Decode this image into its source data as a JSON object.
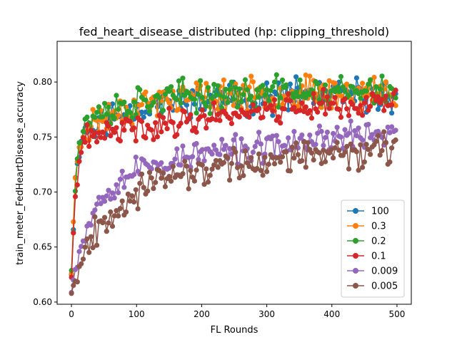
{
  "chart_data": {
    "type": "line",
    "title": "fed_heart_disease_distributed (hp: clipping_threshold)",
    "xlabel": "FL Rounds",
    "ylabel": "train_meter_FedHeartDisease_accuracy",
    "xlim": [
      -22,
      522
    ],
    "ylim": [
      0.598,
      0.837
    ],
    "xticks": [
      0,
      100,
      200,
      300,
      400,
      500
    ],
    "yticks": [
      0.6,
      0.65,
      0.7,
      0.75,
      0.8
    ],
    "ytick_labels": [
      "0.60",
      "0.65",
      "0.70",
      "0.75",
      "0.80"
    ],
    "legend_position": "lower-right",
    "grid": false,
    "x": {
      "start": 0,
      "end": 500,
      "step": 3
    },
    "series": [
      {
        "name": "100",
        "color": "#1f77b4",
        "anchors": [
          [
            0,
            0.63
          ],
          [
            5,
            0.7
          ],
          [
            10,
            0.735
          ],
          [
            20,
            0.755
          ],
          [
            40,
            0.762
          ],
          [
            80,
            0.772
          ],
          [
            150,
            0.782
          ],
          [
            250,
            0.785
          ],
          [
            350,
            0.788
          ],
          [
            500,
            0.788
          ]
        ],
        "noise": 0.018,
        "seed": 11
      },
      {
        "name": "0.3",
        "color": "#ff7f0e",
        "anchors": [
          [
            0,
            0.63
          ],
          [
            5,
            0.7
          ],
          [
            10,
            0.735
          ],
          [
            20,
            0.757
          ],
          [
            40,
            0.765
          ],
          [
            80,
            0.775
          ],
          [
            150,
            0.785
          ],
          [
            250,
            0.788
          ],
          [
            350,
            0.79
          ],
          [
            500,
            0.79
          ]
        ],
        "noise": 0.018,
        "seed": 23
      },
      {
        "name": "0.2",
        "color": "#2ca02c",
        "anchors": [
          [
            0,
            0.63
          ],
          [
            5,
            0.7
          ],
          [
            10,
            0.74
          ],
          [
            20,
            0.762
          ],
          [
            40,
            0.77
          ],
          [
            80,
            0.778
          ],
          [
            150,
            0.786
          ],
          [
            250,
            0.789
          ],
          [
            350,
            0.791
          ],
          [
            500,
            0.791
          ]
        ],
        "noise": 0.018,
        "seed": 37
      },
      {
        "name": "0.1",
        "color": "#d62728",
        "anchors": [
          [
            0,
            0.62
          ],
          [
            5,
            0.69
          ],
          [
            10,
            0.72
          ],
          [
            20,
            0.745
          ],
          [
            40,
            0.752
          ],
          [
            100,
            0.758
          ],
          [
            150,
            0.762
          ],
          [
            250,
            0.772
          ],
          [
            350,
            0.778
          ],
          [
            500,
            0.78
          ]
        ],
        "noise": 0.016,
        "seed": 41
      },
      {
        "name": "0.009",
        "color": "#9467bd",
        "anchors": [
          [
            0,
            0.615
          ],
          [
            10,
            0.64
          ],
          [
            20,
            0.665
          ],
          [
            40,
            0.69
          ],
          [
            60,
            0.705
          ],
          [
            100,
            0.72
          ],
          [
            150,
            0.728
          ],
          [
            200,
            0.735
          ],
          [
            300,
            0.74
          ],
          [
            400,
            0.75
          ],
          [
            500,
            0.755
          ]
        ],
        "noise": 0.016,
        "seed": 53
      },
      {
        "name": "0.005",
        "color": "#8c564b",
        "anchors": [
          [
            0,
            0.612
          ],
          [
            10,
            0.628
          ],
          [
            20,
            0.648
          ],
          [
            40,
            0.668
          ],
          [
            60,
            0.682
          ],
          [
            100,
            0.7
          ],
          [
            150,
            0.712
          ],
          [
            200,
            0.72
          ],
          [
            300,
            0.728
          ],
          [
            400,
            0.735
          ],
          [
            500,
            0.74
          ]
        ],
        "noise": 0.018,
        "seed": 67
      }
    ]
  }
}
